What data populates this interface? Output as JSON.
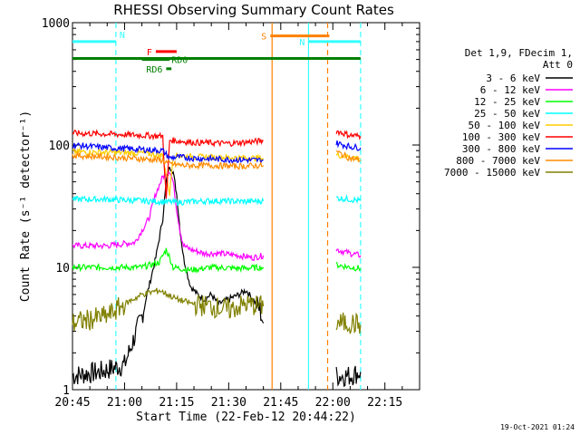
{
  "chart_data": {
    "type": "line",
    "title": "RHESSI Observing Summary Count Rates",
    "xlabel": "Start Time (22-Feb-12 20:44:22)",
    "ylabel": "Count Rate (s⁻¹ detector⁻¹)",
    "y_scale": "log",
    "ylim": [
      1,
      1000
    ],
    "y_ticks": [
      1,
      10,
      100,
      1000
    ],
    "y_tick_labels": [
      "1",
      "10",
      "100",
      "1000"
    ],
    "x_range_min": [
      0,
      100
    ],
    "x_ticks_min": [
      0,
      15,
      30,
      45,
      60,
      75,
      90
    ],
    "x_tick_labels": [
      "20:45",
      "21:00",
      "21:15",
      "21:30",
      "21:45",
      "22:00",
      "22:15"
    ],
    "legend_header": [
      "Det 1,9, FDecim 1,",
      "Att 0"
    ],
    "series": [
      {
        "name": "3 - 6 keV",
        "color": "#000000",
        "segments": [
          [
            [
              0,
              1.3
            ],
            [
              8,
              1.4
            ],
            [
              15,
              1.6
            ],
            [
              20,
              4
            ],
            [
              24,
              12
            ],
            [
              26,
              25
            ],
            [
              27,
              50
            ],
            [
              28,
              68
            ],
            [
              29,
              60
            ],
            [
              30,
              40
            ],
            [
              31,
              20
            ],
            [
              32,
              12
            ],
            [
              33,
              9
            ],
            [
              34,
              7
            ],
            [
              36,
              6
            ],
            [
              38,
              5.5
            ],
            [
              40,
              6
            ],
            [
              42,
              5
            ],
            [
              45,
              5.5
            ],
            [
              48,
              6
            ],
            [
              50,
              6.5
            ],
            [
              52,
              5.5
            ],
            [
              54,
              4.5
            ],
            [
              55,
              3.5
            ]
          ],
          [
            [
              76,
              1.3
            ],
            [
              80,
              1.3
            ],
            [
              83,
              1.4
            ]
          ]
        ]
      },
      {
        "name": "6 - 12 keV",
        "color": "#ff00ff",
        "segments": [
          [
            [
              0,
              15
            ],
            [
              10,
              15
            ],
            [
              18,
              16
            ],
            [
              22,
              25
            ],
            [
              24,
              40
            ],
            [
              26,
              55
            ],
            [
              28,
              62
            ],
            [
              29,
              50
            ],
            [
              30,
              30
            ],
            [
              31,
              20
            ],
            [
              32,
              15
            ],
            [
              34,
              14
            ],
            [
              38,
              13
            ],
            [
              42,
              13
            ],
            [
              48,
              12.5
            ],
            [
              52,
              12
            ],
            [
              55,
              12.5
            ]
          ],
          [
            [
              76,
              14
            ],
            [
              80,
              13
            ],
            [
              83,
              12.5
            ]
          ]
        ]
      },
      {
        "name": "12 - 25 keV",
        "color": "#00ff00",
        "segments": [
          [
            [
              0,
              10
            ],
            [
              10,
              10
            ],
            [
              20,
              10
            ],
            [
              25,
              11
            ],
            [
              27,
              14
            ],
            [
              28,
              12
            ],
            [
              29,
              10
            ],
            [
              34,
              9.5
            ],
            [
              40,
              10
            ],
            [
              48,
              9.8
            ],
            [
              55,
              10
            ]
          ],
          [
            [
              76,
              10.5
            ],
            [
              80,
              10
            ],
            [
              83,
              9.8
            ]
          ]
        ]
      },
      {
        "name": "25 - 50 keV",
        "color": "#00ffff",
        "segments": [
          [
            [
              0,
              36
            ],
            [
              10,
              36
            ],
            [
              20,
              35
            ],
            [
              30,
              34
            ],
            [
              40,
              35
            ],
            [
              50,
              34.5
            ],
            [
              55,
              35
            ]
          ],
          [
            [
              76,
              37
            ],
            [
              80,
              36
            ],
            [
              83,
              35
            ]
          ]
        ]
      },
      {
        "name": "50 - 100 keV",
        "color": "#ffcc00",
        "segments": [
          [
            [
              0,
              88
            ],
            [
              10,
              87
            ],
            [
              20,
              86
            ],
            [
              26,
              82
            ],
            [
              28,
              40
            ],
            [
              29,
              82
            ],
            [
              35,
              80
            ],
            [
              45,
              79
            ],
            [
              55,
              78
            ]
          ],
          [
            [
              76,
              83
            ],
            [
              80,
              80
            ],
            [
              83,
              78
            ]
          ]
        ]
      },
      {
        "name": "100 - 300 keV",
        "color": "#ff0000",
        "segments": [
          [
            [
              0,
              125
            ],
            [
              10,
              123
            ],
            [
              20,
              120
            ],
            [
              26,
              118
            ],
            [
              27,
              35
            ],
            [
              28,
              110
            ],
            [
              30,
              108
            ],
            [
              35,
              105
            ],
            [
              45,
              103
            ],
            [
              55,
              108
            ]
          ],
          [
            [
              76,
              130
            ],
            [
              80,
              120
            ],
            [
              83,
              118
            ]
          ]
        ]
      },
      {
        "name": "300 - 800 keV",
        "color": "#0000ff",
        "segments": [
          [
            [
              0,
              100
            ],
            [
              10,
              95
            ],
            [
              20,
              92
            ],
            [
              26,
              90
            ],
            [
              28,
              78
            ],
            [
              30,
              80
            ],
            [
              35,
              78
            ],
            [
              45,
              76
            ],
            [
              55,
              75
            ]
          ],
          [
            [
              76,
              104
            ],
            [
              80,
              97
            ],
            [
              83,
              95
            ]
          ]
        ]
      },
      {
        "name": "800 - 7000 keV",
        "color": "#ff8c00",
        "segments": [
          [
            [
              0,
              82
            ],
            [
              10,
              80
            ],
            [
              20,
              77
            ],
            [
              26,
              75
            ],
            [
              28,
              70
            ],
            [
              32,
              68
            ],
            [
              40,
              68
            ],
            [
              48,
              67
            ],
            [
              55,
              68
            ]
          ],
          [
            [
              76,
              88
            ],
            [
              80,
              78
            ],
            [
              83,
              75
            ]
          ]
        ]
      },
      {
        "name": "7000 - 15000 keV",
        "color": "#808000",
        "segments": [
          [
            [
              0,
              3.5
            ],
            [
              10,
              4
            ],
            [
              15,
              5
            ],
            [
              20,
              6
            ],
            [
              25,
              6.5
            ],
            [
              30,
              5.5
            ],
            [
              35,
              5
            ],
            [
              40,
              4.8
            ],
            [
              45,
              4.5
            ],
            [
              50,
              5
            ],
            [
              55,
              4.8
            ]
          ],
          [
            [
              76,
              3.5
            ],
            [
              80,
              3.5
            ],
            [
              83,
              3.4
            ]
          ]
        ]
      }
    ],
    "flags": [
      {
        "label": "N",
        "color": "#33ffff",
        "y": 700,
        "x_start": 0,
        "x_end": 12.5
      },
      {
        "label": "N",
        "color": "#33ffff",
        "y": 700,
        "x_start": 68,
        "x_end": 83
      },
      {
        "label": "S",
        "color": "#ff8000",
        "y": 780,
        "x_start": 57,
        "x_end": 74
      },
      {
        "label": "F",
        "color": "#ff0000",
        "y": 580,
        "x_start": 24,
        "x_end": 30
      },
      {
        "label": "RD0",
        "color": "#008000",
        "y": 500,
        "x_start": 20,
        "x_end": 28
      },
      {
        "label": "RD6",
        "color": "#008000",
        "y": 420,
        "x_start": 27,
        "x_end": 28.5
      },
      {
        "label": "",
        "color": "#008000",
        "y": 510,
        "x_start": 0,
        "x_end": 83
      }
    ],
    "vlines": [
      {
        "x": 12.5,
        "color": "#33ffff",
        "dash": true
      },
      {
        "x": 57.5,
        "color": "#ff8000",
        "dash": false
      },
      {
        "x": 68,
        "color": "#33ffff",
        "dash": false
      },
      {
        "x": 73.5,
        "color": "#ff8000",
        "dash": true
      },
      {
        "x": 83,
        "color": "#33ffff",
        "dash": true
      }
    ]
  },
  "timestamp": "19-Oct-2021 01:24"
}
